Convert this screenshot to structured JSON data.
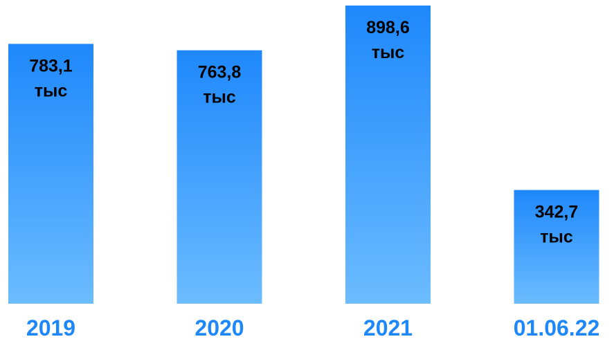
{
  "chart_data": {
    "type": "bar",
    "categories": [
      "2019",
      "2020",
      "2021",
      "01.06.22"
    ],
    "values": [
      783.1,
      763.8,
      898.6,
      342.7
    ],
    "value_labels": [
      "783,1",
      "763,8",
      "898,6",
      "342,7"
    ],
    "unit_label": "тыс",
    "title": "",
    "xlabel": "",
    "ylabel": "",
    "grid": false,
    "legend": "none"
  },
  "colors": {
    "bar_top": "#1e88fb",
    "bar_bottom": "#6cbcff",
    "category_text": "#1e88fb",
    "label_text": "#000000"
  }
}
